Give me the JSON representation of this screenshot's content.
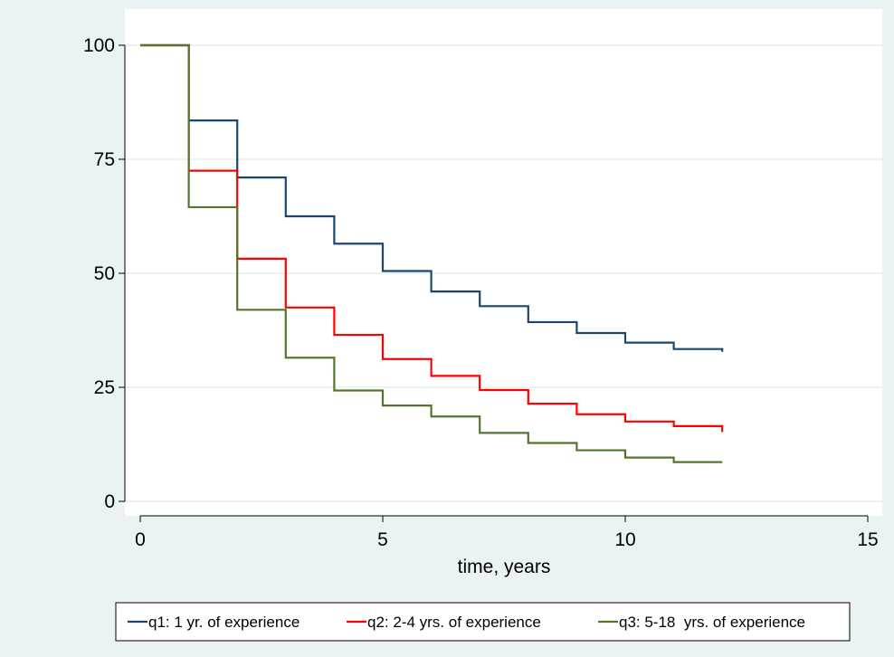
{
  "chart_data": {
    "type": "line",
    "line_style": "step",
    "title": "",
    "xlabel": "time, years",
    "ylabel": "",
    "xlim": [
      0,
      15
    ],
    "ylim": [
      0,
      100
    ],
    "x_ticks": [
      0,
      5,
      10,
      15
    ],
    "y_ticks": [
      0,
      25,
      50,
      75,
      100
    ],
    "x_tick_labels": [
      "0",
      "5",
      "10",
      "15"
    ],
    "y_tick_labels": [
      "0",
      "25",
      "50",
      "75",
      "100"
    ],
    "grid": "horizontal",
    "legend_position": "bottom",
    "background_color": "#eaf2f3",
    "plot_background_color": "#ffffff",
    "gridline_color": "#eaf2f3",
    "series": [
      {
        "name": "q1: 1 yr. of experience",
        "color": "#1a476f",
        "x": [
          0,
          1,
          2,
          3,
          4,
          5,
          6,
          7,
          8,
          9,
          10,
          11,
          12
        ],
        "y": [
          100,
          83.5,
          71,
          62.5,
          56.5,
          50.5,
          46,
          42.8,
          39.3,
          36.9,
          34.8,
          33.4,
          32.8
        ]
      },
      {
        "name": "q2: 2-4 yrs. of experience",
        "color": "#ff0000",
        "x": [
          0,
          1,
          2,
          3,
          4,
          5,
          6,
          7,
          8,
          9,
          10,
          11,
          12
        ],
        "y": [
          100,
          72.5,
          53.2,
          42.5,
          36.5,
          31.2,
          27.5,
          24.4,
          21.4,
          19.1,
          17.5,
          16.5,
          15.2
        ]
      },
      {
        "name": "q3: 5-18  yrs. of experience",
        "color": "#55752f",
        "x": [
          0,
          1,
          2,
          3,
          4,
          5,
          6,
          7,
          8,
          9,
          10,
          11,
          12
        ],
        "y": [
          100,
          64.5,
          42,
          31.5,
          24.3,
          21,
          18.6,
          15,
          12.8,
          11.2,
          9.6,
          8.6,
          8.6
        ]
      }
    ]
  }
}
